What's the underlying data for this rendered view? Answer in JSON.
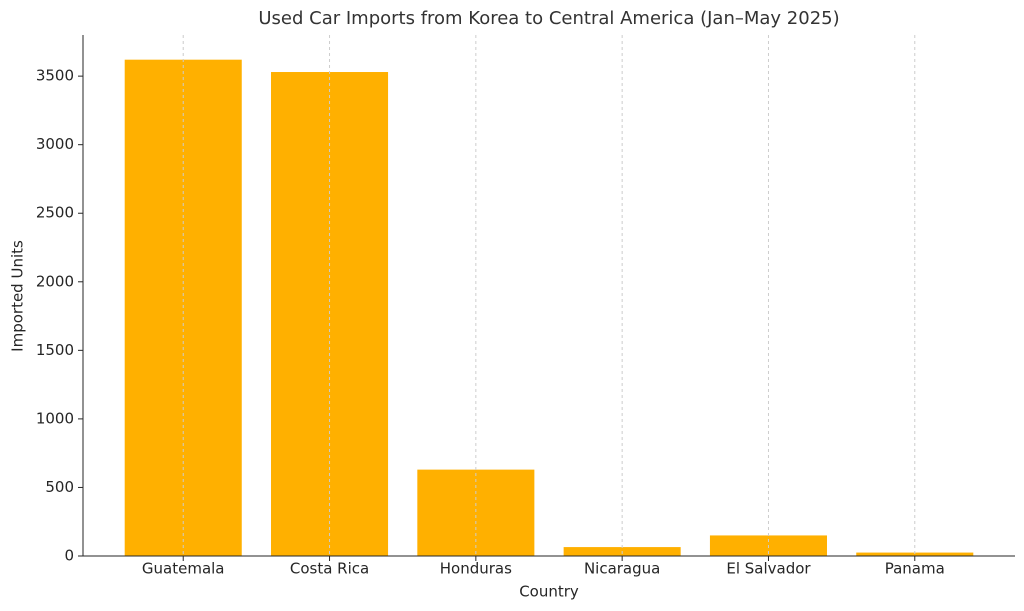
{
  "chart_data": {
    "type": "bar",
    "title": "Used Car Imports from Korea to Central America (Jan–May 2025)",
    "x_label": "Country",
    "y_label": "Imported Units",
    "categories": [
      "Guatemala",
      "Costa Rica",
      "Honduras",
      "Nicaragua",
      "El Salvador",
      "Panama"
    ],
    "values": [
      3620,
      3530,
      630,
      65,
      150,
      25
    ],
    "color": "#ffb000",
    "ylim": [
      0,
      3800
    ],
    "yticks": [
      0,
      500,
      1000,
      1500,
      2000,
      2500,
      3000,
      3500
    ],
    "grid": "x"
  }
}
